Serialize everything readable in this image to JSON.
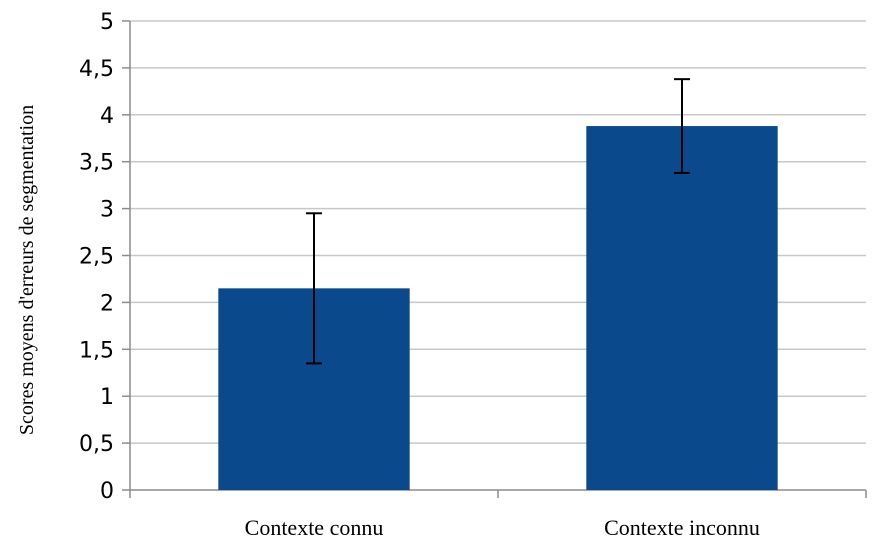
{
  "chart_data": {
    "type": "bar",
    "title": "",
    "xlabel": "",
    "ylabel": "Scores moyens d'erreurs de segmentation",
    "categories": [
      "Contexte connu",
      "Contexte inconnu"
    ],
    "values": [
      2.15,
      3.88
    ],
    "error_low": [
      1.35,
      3.38
    ],
    "error_high": [
      2.95,
      4.38
    ],
    "ylim": [
      0,
      5
    ],
    "yticks": [
      0,
      0.5,
      1,
      1.5,
      2,
      2.5,
      3,
      3.5,
      4,
      4.5,
      5
    ],
    "ytick_labels": [
      "0",
      "0,5",
      "1",
      "1,5",
      "2",
      "2,5",
      "3",
      "3,5",
      "4",
      "4,5",
      "5"
    ],
    "grid": true,
    "legend": "none",
    "colors": {
      "bar": "#0a4a8c",
      "grid": "#c8c8c8",
      "axis": "#8c8c8c",
      "error": "#000000"
    }
  }
}
